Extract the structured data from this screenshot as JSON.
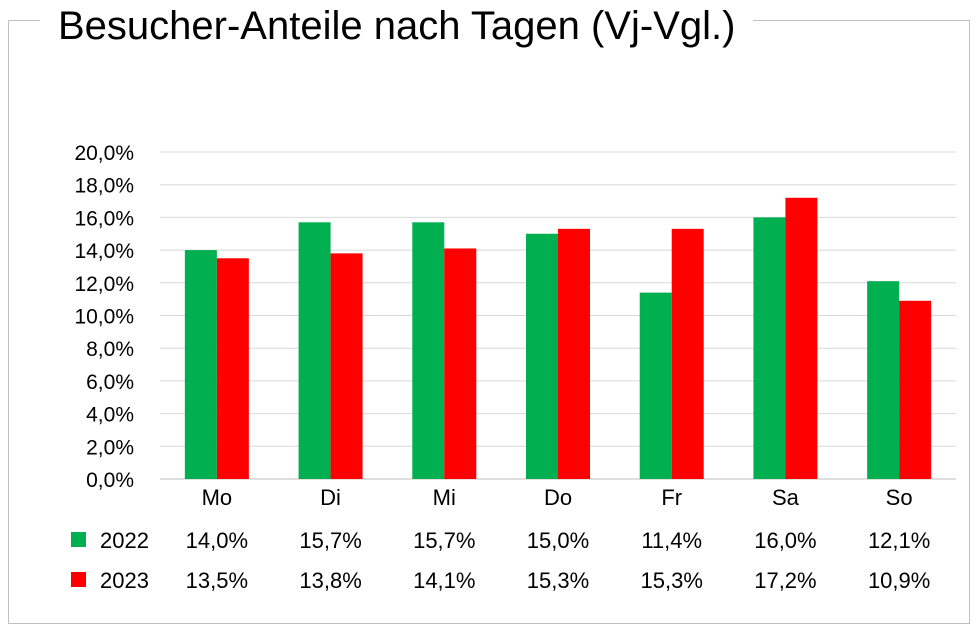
{
  "chart_data": {
    "type": "bar",
    "title": "Besucher-Anteile nach Tagen (Vj-Vgl.)",
    "categories": [
      "Mo",
      "Di",
      "Mi",
      "Do",
      "Fr",
      "Sa",
      "So"
    ],
    "series": [
      {
        "name": "2022",
        "color": "#00B050",
        "values": [
          14.0,
          15.7,
          15.7,
          15.0,
          11.4,
          16.0,
          12.1
        ],
        "labels": [
          "14,0%",
          "15,7%",
          "15,7%",
          "15,0%",
          "11,4%",
          "16,0%",
          "12,1%"
        ]
      },
      {
        "name": "2023",
        "color": "#FF0000",
        "values": [
          13.5,
          13.8,
          14.1,
          15.3,
          15.3,
          17.2,
          10.9
        ],
        "labels": [
          "13,5%",
          "13,8%",
          "14,1%",
          "15,3%",
          "15,3%",
          "17,2%",
          "10,9%"
        ]
      }
    ],
    "ylim": [
      0,
      20
    ],
    "yticks": [
      {
        "value": 0,
        "label": "0,0%"
      },
      {
        "value": 2,
        "label": "2,0%"
      },
      {
        "value": 4,
        "label": "4,0%"
      },
      {
        "value": 6,
        "label": "6,0%"
      },
      {
        "value": 8,
        "label": "8,0%"
      },
      {
        "value": 10,
        "label": "10,0%"
      },
      {
        "value": 12,
        "label": "12,0%"
      },
      {
        "value": 14,
        "label": "14,0%"
      },
      {
        "value": 16,
        "label": "16,0%"
      },
      {
        "value": 18,
        "label": "18,0%"
      },
      {
        "value": 20,
        "label": "20,0%"
      }
    ],
    "grid": true,
    "legend": "data-table-below"
  }
}
